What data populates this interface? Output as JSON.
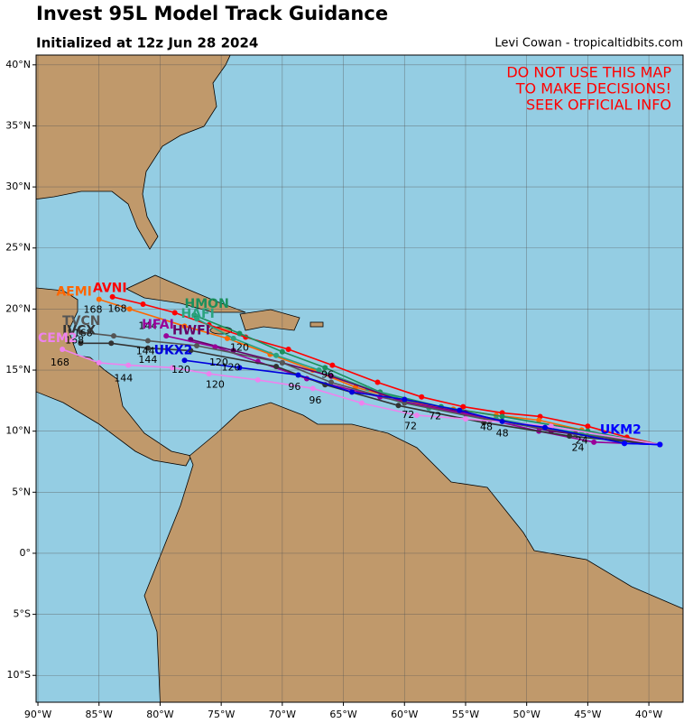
{
  "chart_data": {
    "type": "track-map",
    "title": "Invest 95L Model Track Guidance",
    "subtitle": "Initialized at 12z Jun 28 2024",
    "credit": "Levi Cowan - tropicaltidbits.com",
    "warning": [
      "DO NOT USE THIS MAP",
      "TO MAKE DECISIONS!",
      "SEEK OFFICIAL INFO"
    ],
    "xlim": [
      -90.15,
      -37.2
    ],
    "ylim": [
      -12.2,
      40.8
    ],
    "xticks": [
      {
        "value": -90,
        "label": "90°W"
      },
      {
        "value": -85,
        "label": "85°W"
      },
      {
        "value": -80,
        "label": "80°W"
      },
      {
        "value": -75,
        "label": "75°W"
      },
      {
        "value": -70,
        "label": "70°W"
      },
      {
        "value": -65,
        "label": "65°W"
      },
      {
        "value": -60,
        "label": "60°W"
      },
      {
        "value": -55,
        "label": "55°W"
      },
      {
        "value": -50,
        "label": "50°W"
      },
      {
        "value": -45,
        "label": "45°W"
      },
      {
        "value": -40,
        "label": "40°W"
      }
    ],
    "yticks": [
      {
        "value": -10,
        "label": "10°S"
      },
      {
        "value": -5,
        "label": "5°S"
      },
      {
        "value": 0,
        "label": "0°"
      },
      {
        "value": 5,
        "label": "5°N"
      },
      {
        "value": 10,
        "label": "10°N"
      },
      {
        "value": 15,
        "label": "15°N"
      },
      {
        "value": 20,
        "label": "20°N"
      },
      {
        "value": 25,
        "label": "25°N"
      },
      {
        "value": 30,
        "label": "30°N"
      },
      {
        "value": 35,
        "label": "35°N"
      },
      {
        "value": 40,
        "label": "40°N"
      }
    ],
    "grid": true,
    "series": [
      {
        "name": "AVNI",
        "color": "#ff0000",
        "label_at": [
          -85.5,
          21.7
        ],
        "x": [
          -39.1,
          -41.8,
          -45.0,
          -48.9,
          -52.0,
          -55.2,
          -58.6,
          -62.2,
          -65.9,
          -69.5,
          -73.0,
          -76.0,
          -78.8,
          -81.4,
          -83.9
        ],
        "values": [
          8.9,
          9.5,
          10.4,
          11.2,
          11.5,
          12.0,
          12.8,
          14.0,
          15.4,
          16.7,
          17.7,
          18.7,
          19.7,
          20.4,
          21.0
        ]
      },
      {
        "name": "AEMI",
        "color": "#ff6600",
        "label_at": [
          -88.5,
          21.4
        ],
        "x": [
          -39.1,
          -42.0,
          -45.5,
          -49.0,
          -52.5,
          -56.0,
          -60.0,
          -64.0,
          -67.5,
          -71.0,
          -74.5,
          -78.0,
          -82.5,
          -85.0
        ],
        "values": [
          8.9,
          9.3,
          10.1,
          10.9,
          11.3,
          11.8,
          12.5,
          13.6,
          15.0,
          16.3,
          17.6,
          18.6,
          20.0,
          20.8
        ]
      },
      {
        "name": "HMON",
        "color": "#1a8f5c",
        "label_at": [
          -78.0,
          20.4
        ],
        "x": [
          -39.1,
          -45.0,
          -52.0,
          -57.0,
          -62.0,
          -66.5,
          -70.0,
          -73.5,
          -77.2
        ],
        "values": [
          8.9,
          10.0,
          11.2,
          12.0,
          13.2,
          15.2,
          16.5,
          18.0,
          19.5
        ]
      },
      {
        "name": "HAFI",
        "color": "#2aa37e",
        "label_at": [
          -78.3,
          19.6
        ],
        "x": [
          -39.1,
          -45.5,
          -52.5,
          -58.0,
          -63.0,
          -67.0,
          -70.5,
          -74.0,
          -77.0
        ],
        "values": [
          8.9,
          9.8,
          11.0,
          11.9,
          13.5,
          15.0,
          16.2,
          17.6,
          19.2
        ]
      },
      {
        "name": "HWFI",
        "color": "#660066",
        "label_at": [
          -79.0,
          18.2
        ],
        "x": [
          -39.1,
          -48.0,
          -55.0,
          -60.0,
          -66.0,
          -70.0,
          -74.0,
          -77.5
        ],
        "values": [
          8.9,
          10.0,
          11.5,
          12.4,
          14.5,
          15.6,
          16.6,
          17.5
        ]
      },
      {
        "name": "HFAI",
        "color": "#990099",
        "label_at": [
          -81.5,
          18.7
        ],
        "x": [
          -39.1,
          -44.5,
          -49.0,
          -55.0,
          -62.0,
          -68.0,
          -72.0,
          -75.5,
          -79.5
        ],
        "values": [
          8.9,
          9.1,
          10.0,
          11.4,
          12.8,
          14.3,
          15.7,
          16.9,
          17.8
        ]
      },
      {
        "name": "TVCN",
        "color": "#555555",
        "label_at": [
          -88.0,
          19.0
        ],
        "x": [
          -39.1,
          -46.0,
          -53.0,
          -60.0,
          -66.0,
          -70.0,
          -77.0,
          -81.0,
          -83.8,
          -86.5
        ],
        "values": [
          8.9,
          9.8,
          10.9,
          12.3,
          14.0,
          15.6,
          17.0,
          17.4,
          17.8,
          18.1
        ]
      },
      {
        "name": "IVCX",
        "color": "#333333",
        "label_at": [
          -88.0,
          18.2
        ],
        "x": [
          -39.1,
          -46.5,
          -53.5,
          -60.5,
          -66.5,
          -70.5,
          -77.5,
          -81.0,
          -84.0,
          -86.5
        ],
        "values": [
          8.9,
          9.6,
          10.7,
          12.1,
          13.8,
          15.3,
          16.6,
          16.8,
          17.2,
          17.2
        ]
      },
      {
        "name": "CEM2",
        "color": "#ee82ee",
        "label_at": [
          -90.0,
          17.6
        ],
        "x": [
          -39.1,
          -48.0,
          -55.0,
          -59.0,
          -63.5,
          -67.5,
          -72.0,
          -76.0,
          -79.0,
          -82.6,
          -85.0,
          -88.0
        ],
        "values": [
          8.9,
          10.4,
          11.0,
          11.3,
          12.3,
          13.5,
          14.2,
          14.7,
          15.2,
          15.4,
          15.6,
          16.7
        ]
      },
      {
        "name": "UKX2",
        "color": "#0000dd",
        "label_at": [
          -80.5,
          16.6
        ],
        "x": [
          -39.1,
          -42.0,
          -48.5,
          -52.0,
          -55.5,
          -60.0,
          -64.3,
          -68.7,
          -73.5,
          -78.0
        ],
        "values": [
          8.9,
          9.0,
          10.3,
          10.8,
          11.7,
          12.6,
          13.2,
          14.6,
          15.2,
          15.8
        ]
      },
      {
        "name": "UKM2",
        "color": "#0000ff",
        "label_at": [
          -44.0,
          10.1
        ],
        "x": [
          -39.1,
          -42.0
        ],
        "values": [
          8.9,
          9.0
        ]
      }
    ],
    "hour_labels": [
      {
        "text": "168",
        "lon": -85.5,
        "lat": 19.9
      },
      {
        "text": "168",
        "lon": -83.5,
        "lat": 20.0
      },
      {
        "text": "168",
        "lon": -86.3,
        "lat": 18.0
      },
      {
        "text": "168",
        "lon": -87.0,
        "lat": 17.4
      },
      {
        "text": "168",
        "lon": -88.2,
        "lat": 15.6
      },
      {
        "text": "144",
        "lon": -81.0,
        "lat": 18.6
      },
      {
        "text": "144",
        "lon": -81.2,
        "lat": 16.5
      },
      {
        "text": "144",
        "lon": -81.0,
        "lat": 15.8
      },
      {
        "text": "144",
        "lon": -83.0,
        "lat": 14.3
      },
      {
        "text": "120",
        "lon": -78.3,
        "lat": 15.0
      },
      {
        "text": "120",
        "lon": -75.5,
        "lat": 13.8
      },
      {
        "text": "120",
        "lon": -75.2,
        "lat": 15.6
      },
      {
        "text": "120",
        "lon": -73.5,
        "lat": 16.8
      },
      {
        "text": "120",
        "lon": -74.2,
        "lat": 15.2
      },
      {
        "text": "96",
        "lon": -69.0,
        "lat": 13.6
      },
      {
        "text": "96",
        "lon": -67.3,
        "lat": 12.5
      },
      {
        "text": "96",
        "lon": -66.3,
        "lat": 14.6
      },
      {
        "text": "72",
        "lon": -59.7,
        "lat": 11.3
      },
      {
        "text": "72",
        "lon": -59.5,
        "lat": 10.4
      },
      {
        "text": "72",
        "lon": -57.5,
        "lat": 11.2
      },
      {
        "text": "48",
        "lon": -53.3,
        "lat": 10.3
      },
      {
        "text": "48",
        "lon": -52.0,
        "lat": 9.8
      },
      {
        "text": "24",
        "lon": -45.8,
        "lat": 8.6
      },
      {
        "text": "24",
        "lon": -45.5,
        "lat": 9.2
      }
    ]
  }
}
